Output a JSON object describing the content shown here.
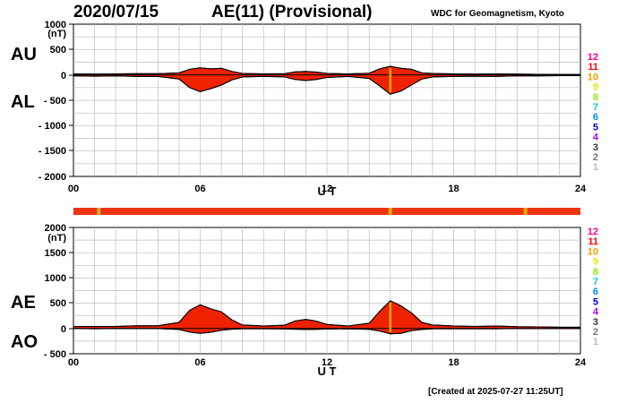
{
  "header": {
    "date": "2020/07/15",
    "index_title": "AE(11) (Provisional)",
    "source": "WDC for Geomagnetism, Kyoto"
  },
  "footer": {
    "created": "[Created at 2025-07-27 11:25UT]"
  },
  "panel_labels": {
    "au": "AU",
    "al": "AL",
    "ae": "AE",
    "ao": "AO"
  },
  "station_count_legend": [
    "12",
    "11",
    "10",
    "9",
    "8",
    "7",
    "6",
    "5",
    "4",
    "3",
    "2",
    "1"
  ],
  "station_count_colors": [
    "#ff0088",
    "#ff0000",
    "#ff9900",
    "#ddee00",
    "#88ee00",
    "#00cccc",
    "#0088ff",
    "#0000dd",
    "#aa00ff",
    "#333333",
    "#777777",
    "#bbbbbb"
  ],
  "chart_data": [
    {
      "type": "area",
      "title": "AU / AL",
      "xlabel": "U T",
      "ylabel": "nT",
      "xlim": [
        0,
        24
      ],
      "ylim": [
        -2000,
        1000
      ],
      "x_ticks": [
        "00",
        "06",
        "12",
        "18",
        "24"
      ],
      "y_ticks": [
        "1000",
        "(nT)",
        "500",
        "0",
        "- 500",
        "- 1000",
        "- 1500",
        "- 2000"
      ],
      "grid": true,
      "series": [
        {
          "name": "AU",
          "x": [
            0,
            1,
            2,
            3,
            4,
            5,
            5.5,
            6,
            6.5,
            7,
            7.5,
            8,
            9,
            10,
            10.5,
            11,
            11.5,
            12,
            13,
            14,
            14.5,
            15,
            15.5,
            16,
            16.5,
            17,
            18,
            19,
            20,
            21,
            22,
            23,
            24
          ],
          "values": [
            20,
            15,
            20,
            25,
            25,
            40,
            110,
            140,
            120,
            130,
            70,
            30,
            20,
            25,
            60,
            70,
            55,
            30,
            20,
            35,
            120,
            170,
            130,
            110,
            40,
            30,
            20,
            15,
            20,
            15,
            12,
            10,
            10
          ]
        },
        {
          "name": "AL",
          "x": [
            0,
            1,
            2,
            3,
            4,
            5,
            5.5,
            6,
            6.5,
            7,
            7.5,
            8,
            9,
            10,
            10.5,
            11,
            11.5,
            12,
            13,
            14,
            14.5,
            15,
            15.5,
            16,
            16.5,
            17,
            18,
            19,
            20,
            21,
            22,
            23,
            24
          ],
          "values": [
            -20,
            -25,
            -20,
            -30,
            -30,
            -80,
            -250,
            -330,
            -270,
            -200,
            -100,
            -40,
            -30,
            -40,
            -90,
            -110,
            -90,
            -50,
            -30,
            -70,
            -220,
            -380,
            -320,
            -200,
            -80,
            -40,
            -30,
            -25,
            -30,
            -20,
            -20,
            -15,
            -15
          ]
        }
      ]
    },
    {
      "type": "area",
      "title": "AE / AO",
      "xlabel": "U T",
      "ylabel": "nT",
      "xlim": [
        0,
        24
      ],
      "ylim": [
        -500,
        2000
      ],
      "x_ticks": [
        "00",
        "06",
        "12",
        "18",
        "24"
      ],
      "y_ticks": [
        "2000",
        "(nT)",
        "1500",
        "1000",
        "500",
        "0",
        "- 500"
      ],
      "grid": true,
      "series": [
        {
          "name": "AE",
          "x": [
            0,
            1,
            2,
            3,
            4,
            5,
            5.5,
            6,
            6.5,
            7,
            7.5,
            8,
            9,
            10,
            10.5,
            11,
            11.5,
            12,
            13,
            14,
            14.5,
            15,
            15.5,
            16,
            16.5,
            17,
            18,
            19,
            20,
            21,
            22,
            23,
            24
          ],
          "values": [
            40,
            40,
            40,
            55,
            55,
            120,
            360,
            470,
            390,
            330,
            170,
            70,
            50,
            65,
            150,
            180,
            145,
            80,
            50,
            105,
            340,
            550,
            450,
            310,
            120,
            70,
            50,
            40,
            50,
            35,
            32,
            25,
            25
          ]
        },
        {
          "name": "AO",
          "x": [
            0,
            1,
            2,
            3,
            4,
            5,
            5.5,
            6,
            6.5,
            7,
            7.5,
            8,
            9,
            10,
            10.5,
            11,
            11.5,
            12,
            13,
            14,
            14.5,
            15,
            15.5,
            16,
            16.5,
            17,
            18,
            19,
            20,
            21,
            22,
            23,
            24
          ],
          "values": [
            0,
            -5,
            0,
            -2,
            -2,
            -20,
            -70,
            -95,
            -75,
            -35,
            -15,
            -5,
            -5,
            -7,
            -15,
            -20,
            -17,
            -10,
            -5,
            -17,
            -50,
            -105,
            -95,
            -45,
            -20,
            -5,
            -5,
            -5,
            -5,
            -2,
            -4,
            -2,
            -2
          ]
        }
      ]
    }
  ],
  "station_bar": {
    "color": "#ee3311",
    "marks": [
      {
        "x": 1.2,
        "color": "#ddaa33"
      },
      {
        "x": 15.0,
        "color": "#ffaa00"
      },
      {
        "x": 21.4,
        "color": "#ffaa00"
      }
    ]
  }
}
